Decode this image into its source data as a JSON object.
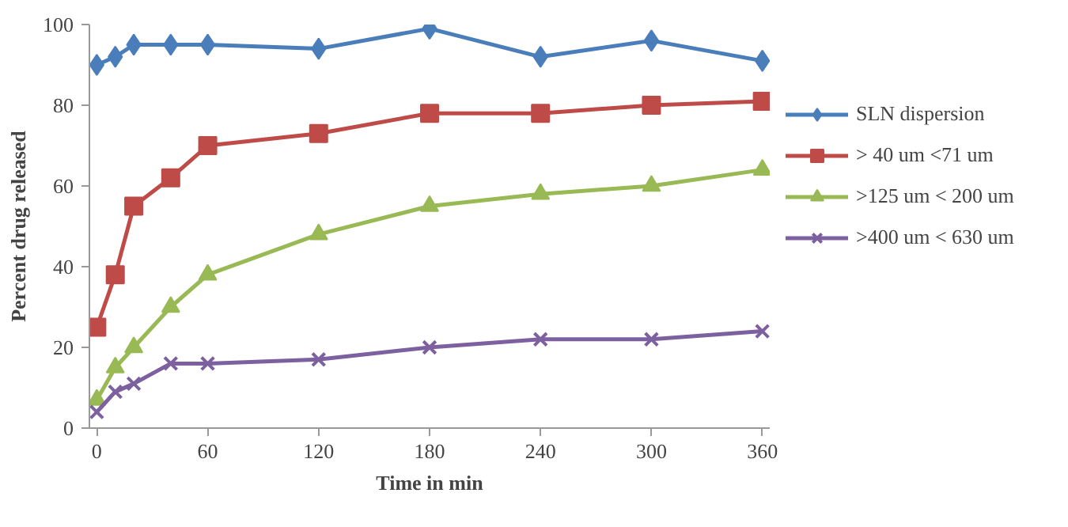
{
  "chart_data": {
    "type": "line",
    "xlabel": "Time in min",
    "ylabel": "Percent drug released",
    "x": [
      0,
      10,
      20,
      40,
      60,
      120,
      180,
      240,
      300,
      360
    ],
    "xlim": [
      -4,
      364
    ],
    "xticks": [
      0,
      60,
      120,
      180,
      240,
      300,
      360
    ],
    "ylim": [
      0,
      100
    ],
    "yticks": [
      0,
      20,
      40,
      60,
      80,
      100
    ],
    "grid": false,
    "legend": "right",
    "line_style": "solid",
    "series": [
      {
        "name": "SLN dispersion",
        "color": "#4a7ebb",
        "marker": "diamond",
        "values": [
          90,
          92,
          95,
          95,
          95,
          94,
          99,
          92,
          96,
          91
        ]
      },
      {
        "name": "> 40 um <71 um",
        "color": "#be4b48",
        "marker": "square",
        "values": [
          25,
          38,
          55,
          62,
          70,
          73,
          78,
          78,
          80,
          81
        ]
      },
      {
        "name": ">125 um < 200 um",
        "color": "#98b954",
        "marker": "triangle",
        "values": [
          7,
          15,
          20,
          30,
          38,
          48,
          55,
          58,
          60,
          64
        ]
      },
      {
        "name": ">400 um < 630 um",
        "color": "#7d60a0",
        "marker": "cross",
        "values": [
          4,
          9,
          11,
          16,
          16,
          17,
          20,
          22,
          22,
          24
        ]
      }
    ]
  }
}
